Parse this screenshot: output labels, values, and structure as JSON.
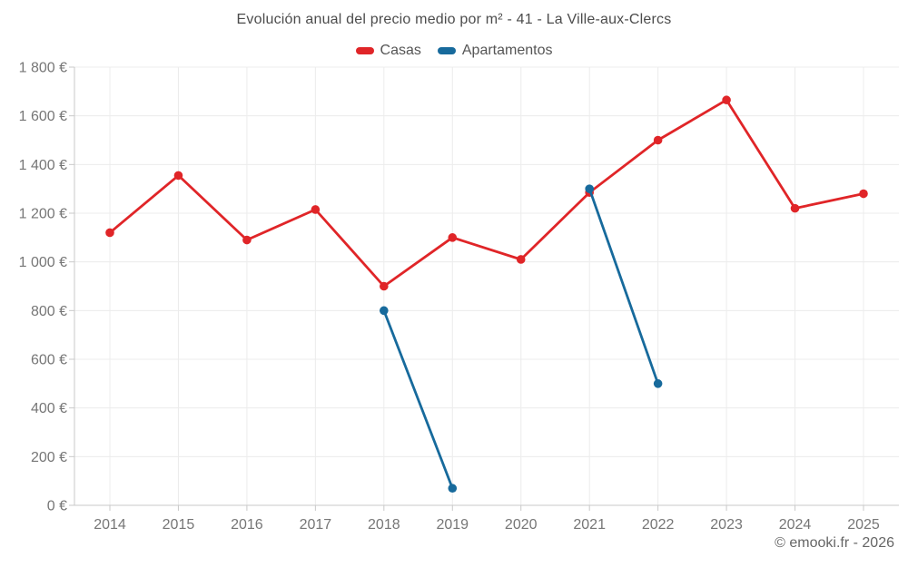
{
  "title": "Evolución anual del precio medio por m² - 41 - La Ville-aux-Clercs",
  "footer": "© emooki.fr - 2026",
  "colors": {
    "casas": "#e02528",
    "apartamentos": "#176a9c",
    "grid": "#ececec",
    "axis": "#c9c9c9",
    "tick_label": "#767676"
  },
  "chart_data": {
    "type": "line",
    "x": [
      "2014",
      "2015",
      "2016",
      "2017",
      "2018",
      "2019",
      "2020",
      "2021",
      "2022",
      "2023",
      "2024",
      "2025"
    ],
    "series": [
      {
        "name": "Casas",
        "color": "#e02528",
        "values": [
          1120,
          1355,
          1090,
          1215,
          900,
          1100,
          1010,
          1285,
          1500,
          1665,
          1220,
          1280
        ]
      },
      {
        "name": "Apartamentos",
        "color": "#176a9c",
        "values": [
          null,
          null,
          null,
          null,
          800,
          70,
          null,
          1300,
          500,
          null,
          null,
          null
        ]
      }
    ],
    "title": "Evolución anual del precio medio por m² - 41 - La Ville-aux-Clercs",
    "xlabel": "",
    "ylabel": "",
    "ylim": [
      0,
      1800
    ],
    "y_ticks": [
      {
        "value": 0,
        "label": "0 €"
      },
      {
        "value": 200,
        "label": "200 €"
      },
      {
        "value": 400,
        "label": "400 €"
      },
      {
        "value": 600,
        "label": "600 €"
      },
      {
        "value": 800,
        "label": "800 €"
      },
      {
        "value": 1000,
        "label": "1 000 €"
      },
      {
        "value": 1200,
        "label": "1 200 €"
      },
      {
        "value": 1400,
        "label": "1 400 €"
      },
      {
        "value": 1600,
        "label": "1 600 €"
      },
      {
        "value": 1800,
        "label": "1 800 €"
      }
    ],
    "grid": true,
    "legend_position": "top"
  }
}
